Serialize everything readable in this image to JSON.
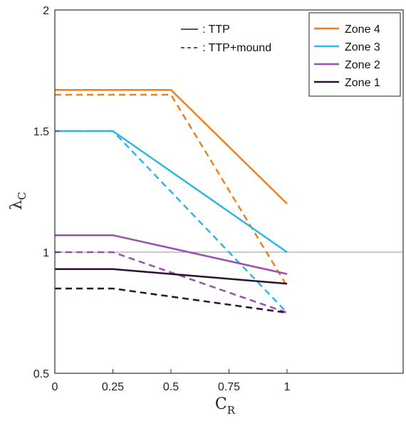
{
  "chart_data": {
    "type": "line",
    "xlabel_main": "C",
    "xlabel_sub": "R",
    "ylabel_main": "λ",
    "ylabel_sub": "C",
    "xlim": [
      0,
      1.5
    ],
    "ylim": [
      0.5,
      2
    ],
    "x_ticks": [
      0,
      0.25,
      0.5,
      0.75,
      1
    ],
    "x_tick_labels": [
      "0",
      "0.25",
      "0.5",
      "0.75",
      "1"
    ],
    "y_ticks": [
      0.5,
      1,
      1.5,
      2
    ],
    "y_tick_labels": [
      "0.5",
      "1",
      "1.5",
      "2"
    ],
    "reference_line": {
      "y": 1,
      "color": "#aaaaaa"
    },
    "style_legend": [
      {
        "symbol": "—",
        "label": ": TTP",
        "dash": "solid"
      },
      {
        "symbol": "---",
        "label": ": TTP+mound",
        "dash": "dashed"
      }
    ],
    "legend_placement": "top-right",
    "series": [
      {
        "name": "Zone 4",
        "color": "#f07f22",
        "style": "solid",
        "x": [
          0,
          0.5,
          1
        ],
        "y": [
          1.67,
          1.67,
          1.2
        ]
      },
      {
        "name": "Zone 4",
        "color": "#f07f22",
        "style": "dashed",
        "x": [
          0,
          0.5,
          1
        ],
        "y": [
          1.65,
          1.65,
          0.86
        ]
      },
      {
        "name": "Zone 3",
        "color": "#2bb7e6",
        "style": "solid",
        "x": [
          0,
          0.25,
          1
        ],
        "y": [
          1.5,
          1.5,
          1.0
        ]
      },
      {
        "name": "Zone 3",
        "color": "#2bb7e6",
        "style": "dashed",
        "x": [
          0,
          0.25,
          1
        ],
        "y": [
          1.5,
          1.5,
          0.75
        ]
      },
      {
        "name": "Zone 2",
        "color": "#9b4fb0",
        "style": "solid",
        "x": [
          0,
          0.25,
          1
        ],
        "y": [
          1.07,
          1.07,
          0.91
        ]
      },
      {
        "name": "Zone 2",
        "color": "#9b4fb0",
        "style": "dashed",
        "x": [
          0,
          0.25,
          1
        ],
        "y": [
          1.0,
          1.0,
          0.75
        ]
      },
      {
        "name": "Zone 1",
        "color": "#2a1230",
        "style": "solid",
        "x": [
          0,
          0.25,
          1
        ],
        "y": [
          0.93,
          0.93,
          0.87
        ]
      },
      {
        "name": "Zone 1",
        "color": "#2a1230",
        "style": "dashed",
        "x": [
          0,
          0.25,
          1
        ],
        "y": [
          0.85,
          0.85,
          0.75
        ]
      }
    ],
    "zone_legend": [
      {
        "label": "Zone 4",
        "color": "#f07f22"
      },
      {
        "label": "Zone 3",
        "color": "#2bb7e6"
      },
      {
        "label": "Zone 2",
        "color": "#9b4fb0"
      },
      {
        "label": "Zone 1",
        "color": "#2a1230"
      }
    ]
  }
}
